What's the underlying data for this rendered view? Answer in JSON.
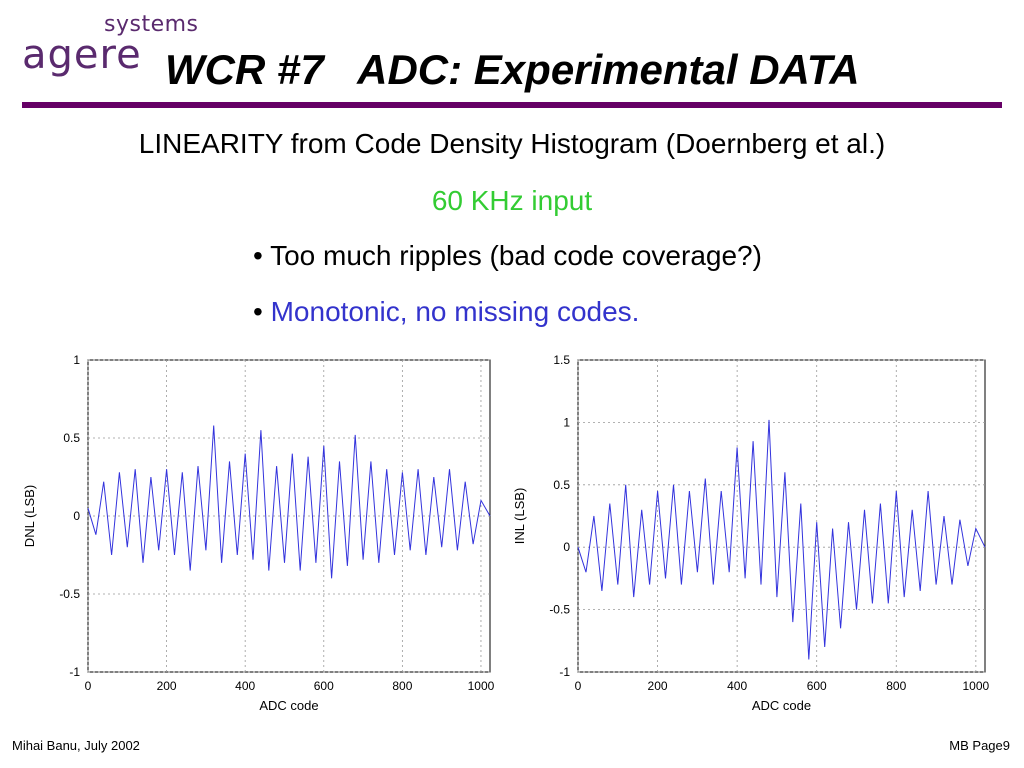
{
  "logo": {
    "top": "systems",
    "word": "agere"
  },
  "title": "WCR #7   ADC: Experimental DATA",
  "subtitle": "LINEARITY from Code Density Histogram (Doernberg et al.)",
  "input_note": "60 KHz input",
  "bullets": [
    {
      "marker": "•",
      "text": "Too much ripples (bad code coverage?)"
    },
    {
      "marker": "•",
      "text": "Monotonic, no missing codes."
    }
  ],
  "footer": {
    "left": "Mihai Banu, July 2002",
    "right": "MB Page9"
  },
  "colors": {
    "accent": "#660066",
    "line": "#3333dd",
    "input_note": "#33cc33",
    "bullet2": "#3333cc"
  },
  "chart_data": [
    {
      "type": "line",
      "xlabel": "ADC code",
      "ylabel": "DNL (LSB)",
      "xlim": [
        0,
        1023
      ],
      "ylim": [
        -1,
        1
      ],
      "xticks": [
        0,
        200,
        400,
        600,
        800,
        1000
      ],
      "yticks": [
        -1,
        -0.5,
        0,
        0.5,
        1
      ],
      "ytick_labels": [
        "-1",
        "-0.5",
        "0",
        "0.5",
        "1"
      ],
      "grid": true,
      "x": [
        0,
        20,
        40,
        60,
        80,
        100,
        120,
        140,
        160,
        180,
        200,
        220,
        240,
        260,
        280,
        300,
        320,
        340,
        360,
        380,
        400,
        420,
        440,
        460,
        480,
        500,
        520,
        540,
        560,
        580,
        600,
        620,
        640,
        660,
        680,
        700,
        720,
        740,
        760,
        780,
        800,
        820,
        840,
        860,
        880,
        900,
        920,
        940,
        960,
        980,
        1000,
        1023
      ],
      "y": [
        0.05,
        -0.12,
        0.22,
        -0.25,
        0.28,
        -0.2,
        0.3,
        -0.3,
        0.25,
        -0.22,
        0.3,
        -0.25,
        0.28,
        -0.35,
        0.32,
        -0.22,
        0.58,
        -0.3,
        0.35,
        -0.25,
        0.4,
        -0.28,
        0.55,
        -0.35,
        0.32,
        -0.3,
        0.4,
        -0.35,
        0.38,
        -0.3,
        0.45,
        -0.4,
        0.35,
        -0.32,
        0.52,
        -0.28,
        0.35,
        -0.3,
        0.3,
        -0.25,
        0.28,
        -0.22,
        0.3,
        -0.25,
        0.25,
        -0.2,
        0.3,
        -0.22,
        0.22,
        -0.18,
        0.1,
        0.0
      ]
    },
    {
      "type": "line",
      "xlabel": "ADC code",
      "ylabel": "INL (LSB)",
      "xlim": [
        0,
        1023
      ],
      "ylim": [
        -1,
        1.5
      ],
      "xticks": [
        0,
        200,
        400,
        600,
        800,
        1000
      ],
      "yticks": [
        -1,
        -0.5,
        0,
        0.5,
        1,
        1.5
      ],
      "ytick_labels": [
        "-1",
        "-0.5",
        "0",
        "0.5",
        "1",
        "1.5"
      ],
      "grid": true,
      "x": [
        0,
        20,
        40,
        60,
        80,
        100,
        120,
        140,
        160,
        180,
        200,
        220,
        240,
        260,
        280,
        300,
        320,
        340,
        360,
        380,
        400,
        420,
        440,
        460,
        480,
        500,
        520,
        540,
        560,
        580,
        600,
        620,
        640,
        660,
        680,
        700,
        720,
        740,
        760,
        780,
        800,
        820,
        840,
        860,
        880,
        900,
        920,
        940,
        960,
        980,
        1000,
        1023
      ],
      "y": [
        0.0,
        -0.2,
        0.25,
        -0.35,
        0.35,
        -0.3,
        0.5,
        -0.4,
        0.3,
        -0.3,
        0.45,
        -0.25,
        0.5,
        -0.3,
        0.45,
        -0.2,
        0.55,
        -0.3,
        0.45,
        -0.2,
        0.8,
        -0.25,
        0.85,
        -0.3,
        1.02,
        -0.4,
        0.6,
        -0.6,
        0.35,
        -0.9,
        0.2,
        -0.8,
        0.15,
        -0.65,
        0.2,
        -0.5,
        0.3,
        -0.45,
        0.35,
        -0.45,
        0.45,
        -0.4,
        0.3,
        -0.35,
        0.45,
        -0.3,
        0.25,
        -0.3,
        0.22,
        -0.15,
        0.15,
        0.0
      ]
    }
  ]
}
